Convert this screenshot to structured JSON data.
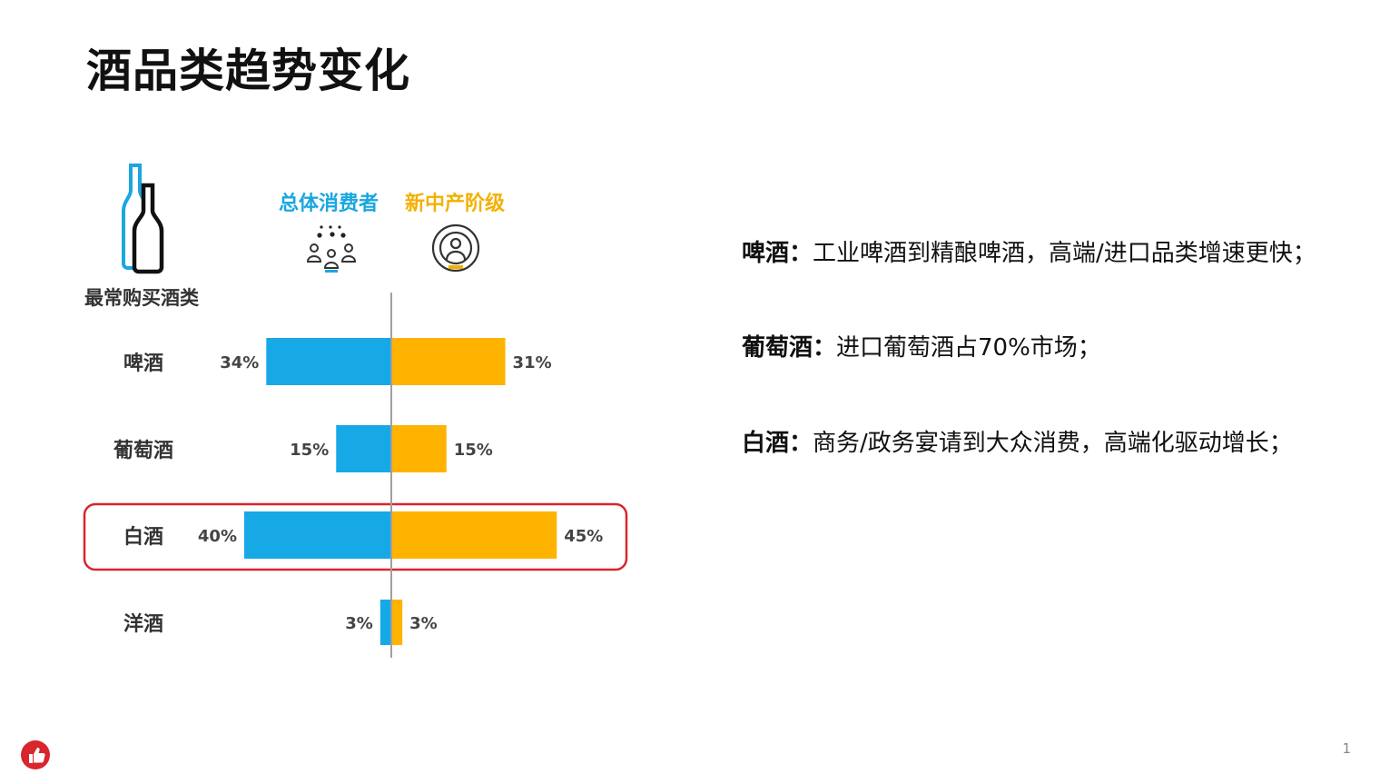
{
  "title": "酒品类趋势变化",
  "chart_data": {
    "type": "bar",
    "orientation": "horizontal-diverging",
    "category_header": "最常购买酒类",
    "categories": [
      "啤酒",
      "葡萄酒",
      "白酒",
      "洋酒"
    ],
    "series": [
      {
        "name": "总体消费者",
        "values": [
          34,
          15,
          40,
          3
        ],
        "labels": [
          "34%",
          "15%",
          "40%",
          "3%"
        ],
        "color": "#16a9e5",
        "direction": "left"
      },
      {
        "name": "新中产阶级",
        "values": [
          31,
          15,
          45,
          3
        ],
        "labels": [
          "31%",
          "15%",
          "45%",
          "3%"
        ],
        "color": "#ffb301",
        "direction": "right"
      }
    ],
    "highlighted_category": "白酒",
    "highlight_color": "#d9252d",
    "axis_color": "#a0a0a0"
  },
  "points": [
    {
      "key": "啤酒：",
      "text": "工业啤酒到精酿啤酒，高端/进口品类增速更快；"
    },
    {
      "key": "葡萄酒：",
      "text": "进口葡萄酒占70%市场；"
    },
    {
      "key": "白酒：",
      "text": "商务/政务宴请到大众消费，高端化驱动增长；"
    }
  ],
  "icons": {
    "bottles": "wine-bottles-icon",
    "crowd": "crowd-icon",
    "person": "person-target-icon",
    "badge": "thumbs-up-icon"
  },
  "page_number": "1"
}
